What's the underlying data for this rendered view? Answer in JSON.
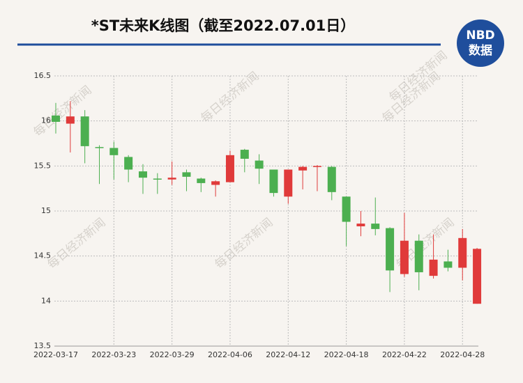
{
  "chart_data": {
    "type": "candlestick",
    "title": "*ST未来K线图（截至2022.07.01日）",
    "watermark": "每日经济新闻",
    "logo": {
      "top": "NBD",
      "bottom": "数据"
    },
    "categories": [
      "2022-03-17",
      null,
      null,
      null,
      "2022-03-23",
      null,
      null,
      null,
      "2022-03-29",
      null,
      null,
      null,
      "2022-04-06",
      null,
      null,
      null,
      "2022-04-12",
      null,
      null,
      null,
      "2022-04-18",
      null,
      null,
      null,
      "2022-04-22",
      null,
      null,
      null,
      "2022-04-28",
      null
    ],
    "open": [
      16.06,
      15.97,
      16.05,
      15.71,
      15.7,
      15.6,
      15.44,
      15.36,
      15.35,
      15.43,
      15.36,
      15.29,
      15.32,
      15.68,
      15.56,
      15.46,
      15.16,
      15.45,
      15.49,
      15.49,
      15.16,
      14.83,
      14.86,
      14.81,
      14.3,
      14.67,
      14.28,
      14.44,
      14.37,
      13.97
    ],
    "high": [
      16.2,
      16.22,
      16.12,
      15.73,
      15.77,
      15.62,
      15.52,
      15.42,
      15.55,
      15.46,
      15.37,
      15.34,
      15.67,
      15.69,
      15.63,
      15.46,
      15.46,
      15.5,
      15.51,
      15.5,
      15.16,
      15.0,
      15.15,
      14.82,
      14.98,
      14.74,
      14.74,
      14.57,
      14.8,
      14.59
    ],
    "low": [
      15.86,
      15.65,
      15.53,
      15.3,
      15.35,
      15.32,
      15.19,
      15.19,
      15.29,
      15.22,
      15.21,
      15.16,
      15.32,
      15.43,
      15.3,
      15.16,
      15.08,
      15.24,
      15.22,
      15.12,
      14.61,
      14.72,
      14.73,
      14.1,
      14.27,
      14.12,
      14.25,
      14.33,
      14.23,
      13.97
    ],
    "close": [
      15.99,
      16.05,
      15.72,
      15.7,
      15.62,
      15.46,
      15.37,
      15.35,
      15.37,
      15.38,
      15.31,
      15.33,
      15.62,
      15.58,
      15.47,
      15.2,
      15.46,
      15.49,
      15.5,
      15.21,
      14.88,
      14.86,
      14.8,
      14.34,
      14.67,
      14.32,
      14.46,
      14.37,
      14.7,
      14.58
    ],
    "up_color": "#e03a3a",
    "down_color": "#4caf50",
    "ylim": [
      13.5,
      16.5
    ],
    "yticks": [
      13.5,
      14,
      14.5,
      15,
      15.5,
      16,
      16.5
    ],
    "grid": true
  }
}
